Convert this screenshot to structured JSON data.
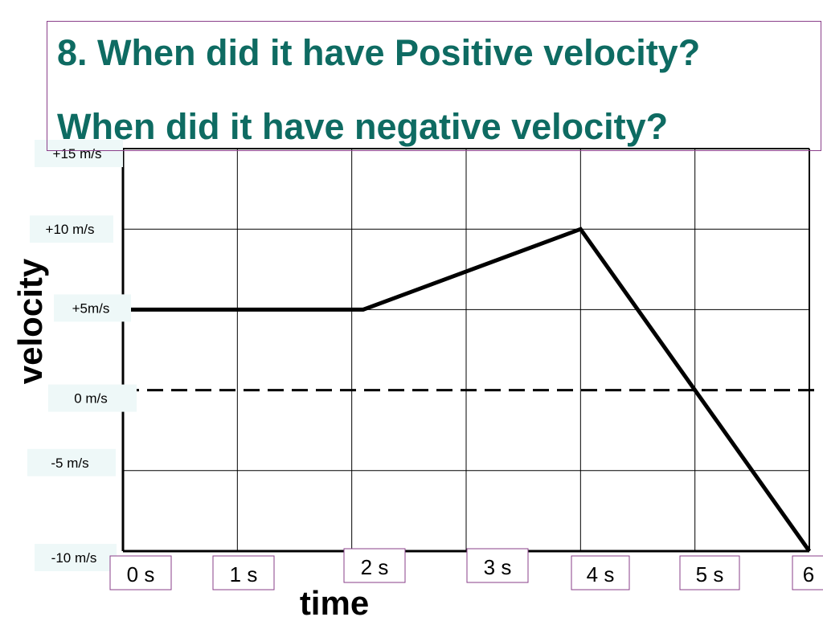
{
  "title": {
    "line1": "8. When did it have Positive velocity?",
    "line2": "When did it have negative velocity?"
  },
  "colors": {
    "title_text": "#0e6b62",
    "title_border": "#8a3f8a",
    "ytick_bg": "#eef8f8",
    "xtick_border": "#8a3f8a",
    "xtick_bg": "#ffffff",
    "series_line": "#000000"
  },
  "chart_data": {
    "type": "line",
    "xlabel": "time",
    "ylabel": "velocity",
    "xlim": [
      0,
      6
    ],
    "ylim": [
      -10,
      15
    ],
    "grid": true,
    "yticks": [
      {
        "value": 15,
        "label": "+15 m/s"
      },
      {
        "value": 10,
        "label": "+10 m/s"
      },
      {
        "value": 5,
        "label": "+5m/s"
      },
      {
        "value": 0,
        "label": "0 m/s"
      },
      {
        "value": -5,
        "label": "-5 m/s"
      },
      {
        "value": -10,
        "label": "-10 m/s"
      }
    ],
    "xticks": [
      {
        "value": 0,
        "label": "0 s"
      },
      {
        "value": 1,
        "label": "1 s"
      },
      {
        "value": 2,
        "label": "2 s"
      },
      {
        "value": 3,
        "label": "3 s"
      },
      {
        "value": 4,
        "label": "4 s"
      },
      {
        "value": 5,
        "label": "5 s"
      },
      {
        "value": 6,
        "label": "6"
      }
    ],
    "reference_line": {
      "y": 0,
      "style": "dashed"
    },
    "series": [
      {
        "x": [
          0,
          2.1,
          4,
          6
        ],
        "y": [
          5,
          5,
          10,
          -10
        ]
      }
    ]
  }
}
